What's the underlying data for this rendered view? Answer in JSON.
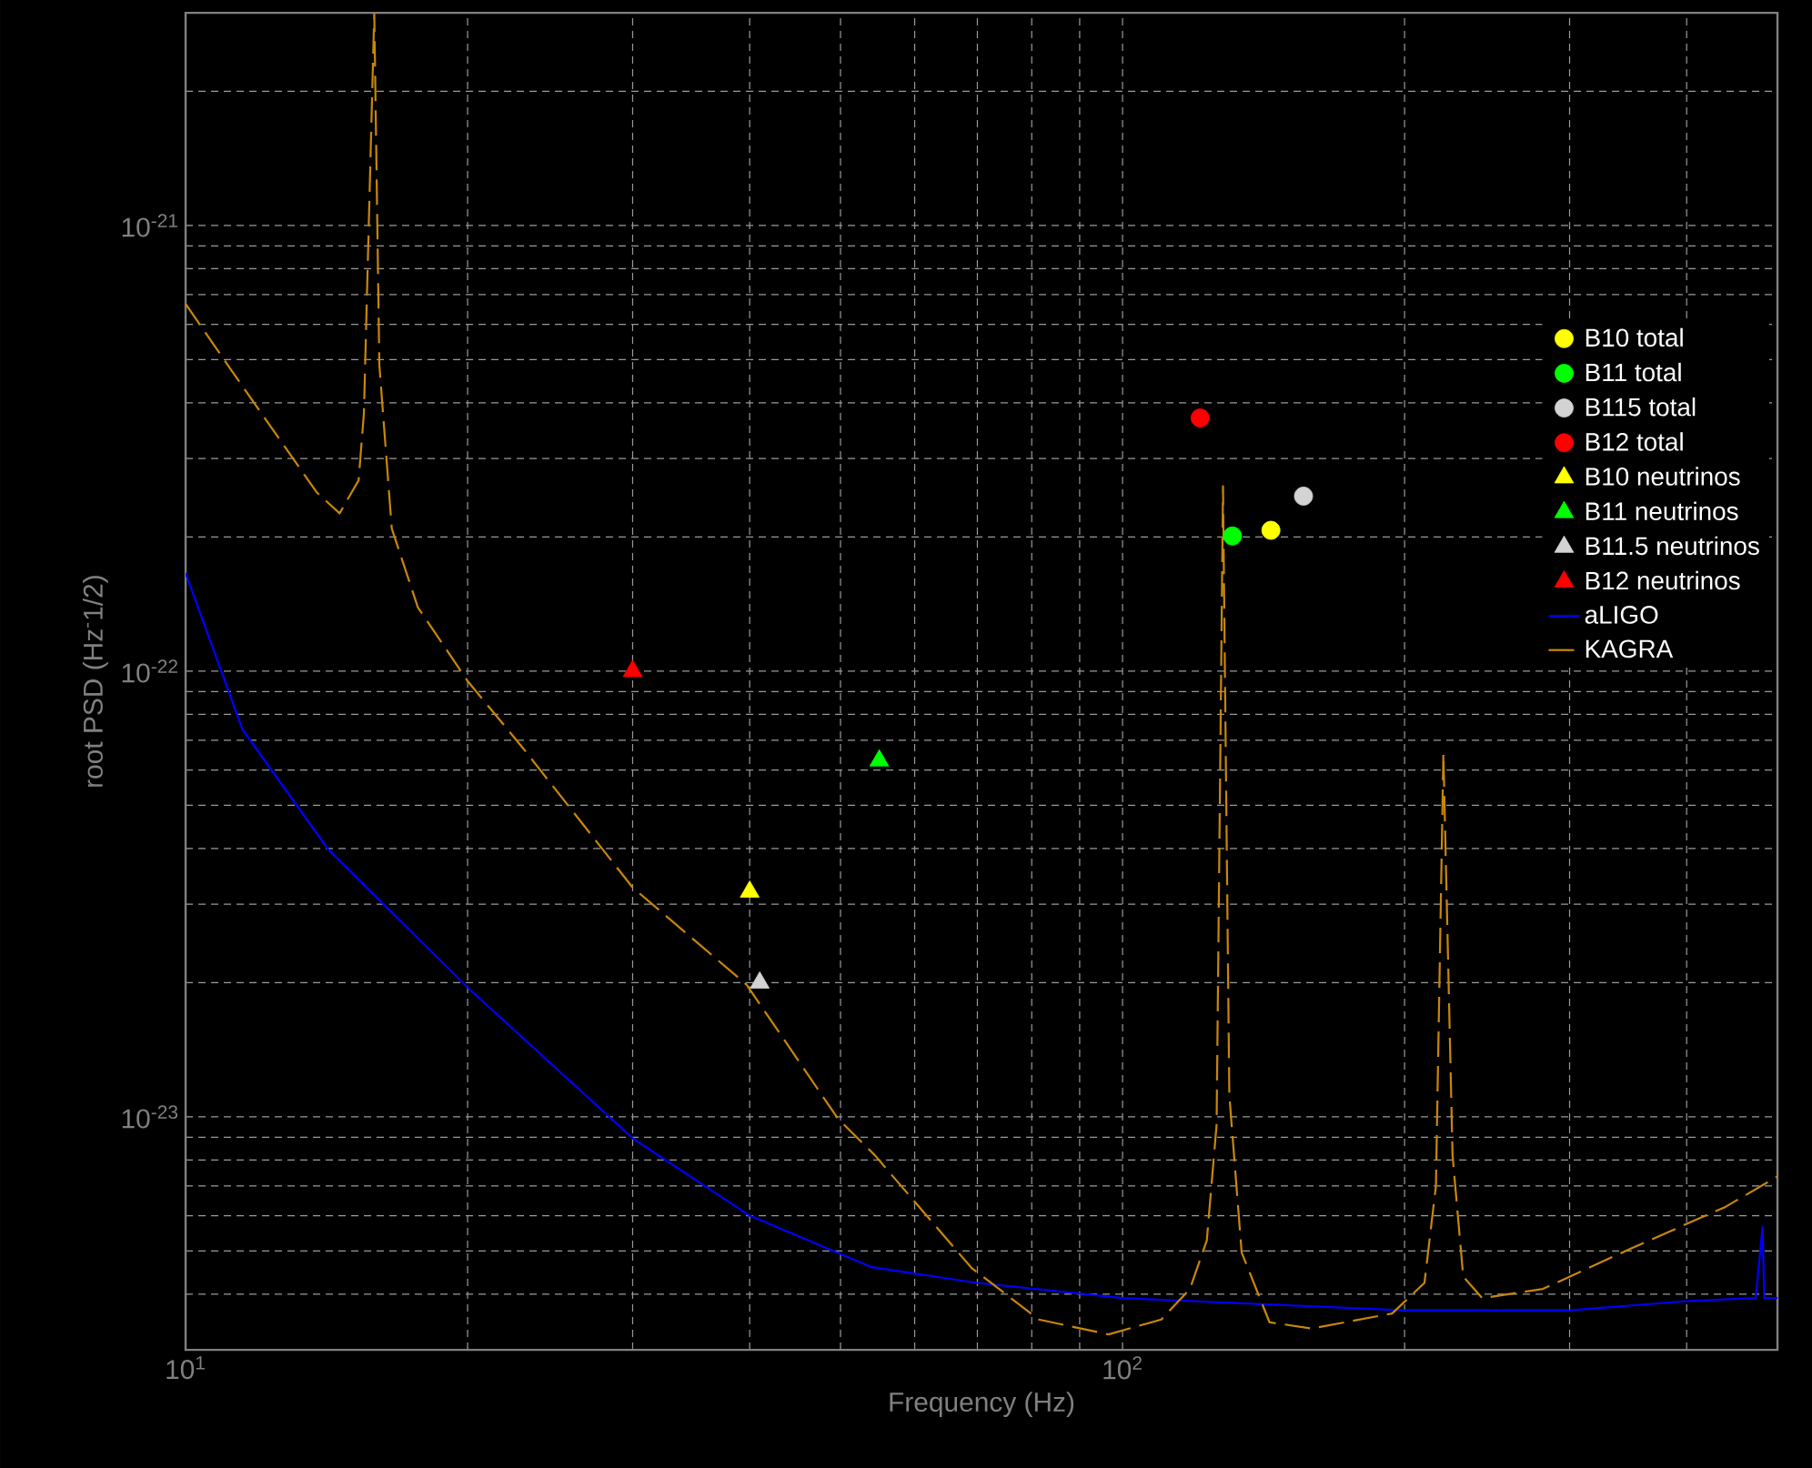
{
  "chart_data": {
    "type": "scatter",
    "xlabel": "Frequency (Hz)",
    "ylabel": "root PSD (Hz$^{-}$1/2)",
    "log": "xy",
    "xlim": [
      10,
      500
    ],
    "ylim": [
      3e-24,
      3e-21
    ],
    "xticks": [
      {
        "value": 10,
        "label": "10$^{1}$"
      },
      {
        "value": 100,
        "label": "10$^{2}$"
      }
    ],
    "yticks": [
      {
        "value": 1e-23,
        "label": "10$^{-23}$"
      },
      {
        "value": 1e-22,
        "label": "10$^{-22}$"
      },
      {
        "value": 1e-21,
        "label": "10$^{-21}$"
      }
    ],
    "grid": true,
    "legend": "right",
    "series": [
      {
        "name": "B10 total",
        "marker": "circle",
        "color": "#ffff00",
        "x": [
          144
        ],
        "values": [
          2.07e-22
        ]
      },
      {
        "name": "B11 total",
        "marker": "circle",
        "color": "#00ff00",
        "x": [
          131
        ],
        "values": [
          2.01e-22
        ]
      },
      {
        "name": "B115 total",
        "marker": "circle",
        "color": "#d3d3d3",
        "x": [
          156
        ],
        "values": [
          2.47e-22
        ]
      },
      {
        "name": "B12 total",
        "marker": "circle",
        "color": "#ff0000",
        "x": [
          121
        ],
        "values": [
          3.7e-22
        ]
      },
      {
        "name": "B10 neutrinos",
        "marker": "triangle",
        "color": "#ffff00",
        "x": [
          40
        ],
        "values": [
          3.2e-23
        ]
      },
      {
        "name": "B11 neutrinos",
        "marker": "triangle",
        "color": "#00ff00",
        "x": [
          55
        ],
        "values": [
          6.3e-23
        ]
      },
      {
        "name": "B11.5 neutrinos",
        "marker": "triangle",
        "color": "#d3d3d3",
        "x": [
          41
        ],
        "values": [
          2e-23
        ]
      },
      {
        "name": "B12 neutrinos",
        "marker": "triangle",
        "color": "#ff0000",
        "x": [
          30
        ],
        "values": [
          1e-22
        ]
      },
      {
        "name": "aLIGO",
        "type": "line",
        "marker": "none",
        "line_style": "solid",
        "color": "#0000ff",
        "x": [
          10,
          11.5,
          14.2,
          20,
          30,
          40,
          54,
          70,
          100,
          200,
          300,
          400,
          474,
          482,
          484,
          500
        ],
        "values": [
          1.66e-22,
          7.4e-23,
          3.98e-23,
          1.95e-23,
          8.95e-24,
          6e-24,
          4.6e-24,
          4.24e-24,
          3.92e-24,
          3.68e-24,
          3.68e-24,
          3.86e-24,
          3.92e-24,
          5.66e-24,
          3.92e-24,
          3.92e-24
        ]
      },
      {
        "name": "KAGRA",
        "type": "line",
        "marker": "none",
        "line_style": "dashed",
        "color": "#c8870a",
        "x": [
          10,
          11.2,
          13.8,
          14.6,
          15.3,
          15.5,
          15.9,
          16.1,
          16.6,
          17.7,
          20,
          22.9,
          30,
          39.7,
          49.7,
          54.4,
          69,
          81.4,
          96.6,
          110,
          118,
          123,
          126,
          128,
          130,
          134,
          143.5,
          159,
          194,
          210,
          216,
          220,
          225,
          231,
          242,
          281,
          347,
          440,
          500
        ],
        "values": [
          6.67e-22,
          4.72e-22,
          2.52e-22,
          2.26e-22,
          2.68e-22,
          3.79e-22,
          3e-21,
          4.87e-22,
          2.09e-22,
          1.39e-22,
          9.5e-23,
          6.73e-23,
          3.27e-23,
          1.98e-23,
          9.9e-24,
          8.2e-24,
          4.58e-24,
          3.51e-24,
          3.25e-24,
          3.51e-24,
          4.11e-24,
          5.28e-24,
          9.6e-24,
          2.6e-22,
          1.12e-23,
          4.96e-24,
          3.46e-24,
          3.35e-24,
          3.62e-24,
          4.24e-24,
          7e-24,
          6.53e-23,
          8.2e-24,
          4.38e-24,
          3.92e-24,
          4.11e-24,
          5.04e-24,
          6.28e-24,
          7.35e-24
        ]
      }
    ]
  }
}
